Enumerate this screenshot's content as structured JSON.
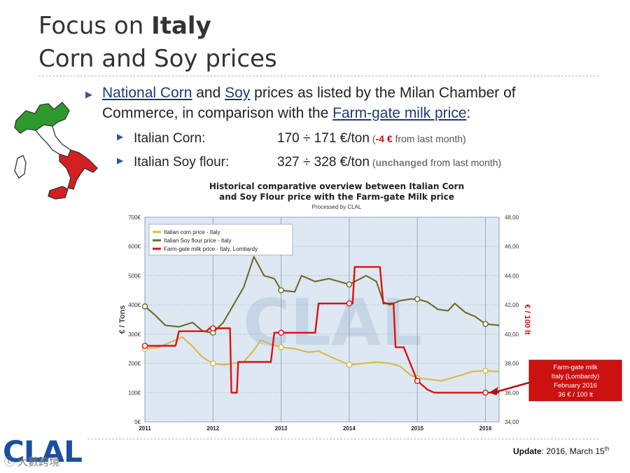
{
  "slide": {
    "title_prefix": "Focus on ",
    "title_bold": "Italy",
    "title_line2": "Corn and Soy prices"
  },
  "bullet": {
    "link_corn": "National Corn",
    "and": " and ",
    "link_soy": "Soy",
    "text1": " prices as listed by the Milan Chamber of",
    "text2": "Commerce, in comparison with the ",
    "link_milk": "Farm-gate milk price",
    "colon": ":"
  },
  "items": [
    {
      "label": "Italian Corn:",
      "value": "170 ÷ 171 €/ton",
      "open": " (",
      "change": "-4 €",
      "tail": " from last month)"
    },
    {
      "label": "Italian Soy flour:",
      "value": "327 ÷ 328 €/ton",
      "open": " (",
      "change": "unchanged",
      "tail": " from last month)"
    }
  ],
  "footer": {
    "logo": "CLAL",
    "watermark": "ⓒ 大數跨境",
    "update_label": "Update",
    "update_text": ": 2016, March 15",
    "update_sup": "th"
  },
  "colors": {
    "corn": "#d9b84a",
    "soy": "#6e6a28",
    "milk": "#e01010",
    "plot_bg": "#dde8f3",
    "callout": "#cc1111",
    "italy_green": "#2e9a2e",
    "italy_red": "#d42020"
  },
  "chart_data": {
    "type": "line",
    "title": "Historical comparative overview between Italian Corn and Soy Flour price with the Farm-gate Milk price",
    "title_line1": "Historical comparative overview between Italian Corn",
    "title_line2": "and Soy Flour price with the Farm-gate Milk price",
    "subtitle": "Processed by CLAL",
    "ylabel_left": "€ / Tons",
    "ylabel_right": "€ / 100 lt",
    "x_ticks": [
      2011,
      2012,
      2013,
      2014,
      2015,
      2016
    ],
    "left_ticks": [
      "0€",
      "100€",
      "200€",
      "300€",
      "400€",
      "500€",
      "600€",
      "700€"
    ],
    "right_ticks": [
      "34,00",
      "36,00",
      "38,00",
      "40,00",
      "42,00",
      "44,00",
      "46,00",
      "48,00"
    ],
    "ylim_left": [
      0,
      700
    ],
    "ylim_right": [
      34,
      48
    ],
    "xlim": [
      2011,
      2016.2
    ],
    "grid": true,
    "legend_position": "top-left",
    "series": [
      {
        "name": "Italian corn price - Italy",
        "axis": "left",
        "color": "#d9b84a",
        "points": [
          [
            2011.0,
            250
          ],
          [
            2011.2,
            255
          ],
          [
            2011.4,
            275
          ],
          [
            2011.55,
            290
          ],
          [
            2011.7,
            258
          ],
          [
            2011.85,
            220
          ],
          [
            2012.0,
            200
          ],
          [
            2012.15,
            195
          ],
          [
            2012.3,
            200
          ],
          [
            2012.45,
            205
          ],
          [
            2012.6,
            245
          ],
          [
            2012.7,
            280
          ],
          [
            2012.85,
            265
          ],
          [
            2013.0,
            255
          ],
          [
            2013.2,
            250
          ],
          [
            2013.4,
            238
          ],
          [
            2013.55,
            242
          ],
          [
            2013.75,
            220
          ],
          [
            2014.0,
            195
          ],
          [
            2014.2,
            200
          ],
          [
            2014.4,
            205
          ],
          [
            2014.6,
            200
          ],
          [
            2014.75,
            190
          ],
          [
            2014.9,
            160
          ],
          [
            2015.0,
            150
          ],
          [
            2015.2,
            145
          ],
          [
            2015.35,
            140
          ],
          [
            2015.5,
            150
          ],
          [
            2015.65,
            160
          ],
          [
            2015.8,
            172
          ],
          [
            2016.0,
            175
          ],
          [
            2016.2,
            172
          ]
        ]
      },
      {
        "name": "Italian Soy flour price - Italy",
        "axis": "left",
        "color": "#6e6a28",
        "points": [
          [
            2011.0,
            395
          ],
          [
            2011.15,
            365
          ],
          [
            2011.3,
            330
          ],
          [
            2011.5,
            325
          ],
          [
            2011.7,
            340
          ],
          [
            2011.85,
            310
          ],
          [
            2012.0,
            305
          ],
          [
            2012.15,
            340
          ],
          [
            2012.3,
            400
          ],
          [
            2012.45,
            460
          ],
          [
            2012.6,
            565
          ],
          [
            2012.75,
            500
          ],
          [
            2012.9,
            490
          ],
          [
            2013.0,
            450
          ],
          [
            2013.2,
            445
          ],
          [
            2013.3,
            500
          ],
          [
            2013.5,
            480
          ],
          [
            2013.7,
            490
          ],
          [
            2013.85,
            480
          ],
          [
            2014.0,
            470
          ],
          [
            2014.25,
            500
          ],
          [
            2014.4,
            480
          ],
          [
            2014.5,
            410
          ],
          [
            2014.6,
            400
          ],
          [
            2014.75,
            415
          ],
          [
            2014.9,
            420
          ],
          [
            2015.0,
            420
          ],
          [
            2015.15,
            410
          ],
          [
            2015.3,
            385
          ],
          [
            2015.45,
            380
          ],
          [
            2015.55,
            405
          ],
          [
            2015.7,
            375
          ],
          [
            2015.85,
            360
          ],
          [
            2016.0,
            335
          ],
          [
            2016.2,
            330
          ]
        ]
      },
      {
        "name": "Farm-gate milk price - Italy, Lombardy",
        "axis": "right",
        "color": "#e01010",
        "points": [
          [
            2011.0,
            39.2
          ],
          [
            2011.45,
            39.2
          ],
          [
            2011.5,
            40.2
          ],
          [
            2011.9,
            40.2
          ],
          [
            2011.95,
            40.4
          ],
          [
            2012.25,
            40.4
          ],
          [
            2012.27,
            36.0
          ],
          [
            2012.35,
            36.0
          ],
          [
            2012.37,
            38.1
          ],
          [
            2012.85,
            38.1
          ],
          [
            2012.9,
            40.1
          ],
          [
            2013.5,
            40.1
          ],
          [
            2013.55,
            42.1
          ],
          [
            2014.05,
            42.1
          ],
          [
            2014.08,
            44.6
          ],
          [
            2014.45,
            44.6
          ],
          [
            2014.5,
            42.1
          ],
          [
            2014.65,
            42.1
          ],
          [
            2014.68,
            39.1
          ],
          [
            2014.8,
            39.1
          ],
          [
            2015.0,
            36.8
          ],
          [
            2015.15,
            36.2
          ],
          [
            2015.25,
            36.0
          ],
          [
            2016.2,
            36.0
          ]
        ]
      }
    ],
    "markers": {
      "corn": [
        [
          2011.0,
          250
        ],
        [
          2012.0,
          200
        ],
        [
          2013.0,
          255
        ],
        [
          2014.0,
          195
        ],
        [
          2015.0,
          150
        ],
        [
          2016.0,
          175
        ]
      ],
      "soy": [
        [
          2011.0,
          395
        ],
        [
          2012.0,
          305
        ],
        [
          2013.0,
          450
        ],
        [
          2014.0,
          470
        ],
        [
          2015.0,
          420
        ],
        [
          2016.0,
          335
        ]
      ],
      "milk": [
        [
          2011.0,
          39.2
        ],
        [
          2012.0,
          40.4
        ],
        [
          2013.0,
          40.1
        ],
        [
          2014.0,
          42.1
        ],
        [
          2015.0,
          36.8
        ],
        [
          2016.0,
          36.0
        ]
      ]
    },
    "watermark": "CLAL",
    "callout": {
      "lines": [
        "Farm-gate milk",
        "Italy (Lombardy)",
        "February 2016",
        "36 € / 100 lt"
      ],
      "target_x": 2016.0,
      "target_y": 36.0
    }
  }
}
